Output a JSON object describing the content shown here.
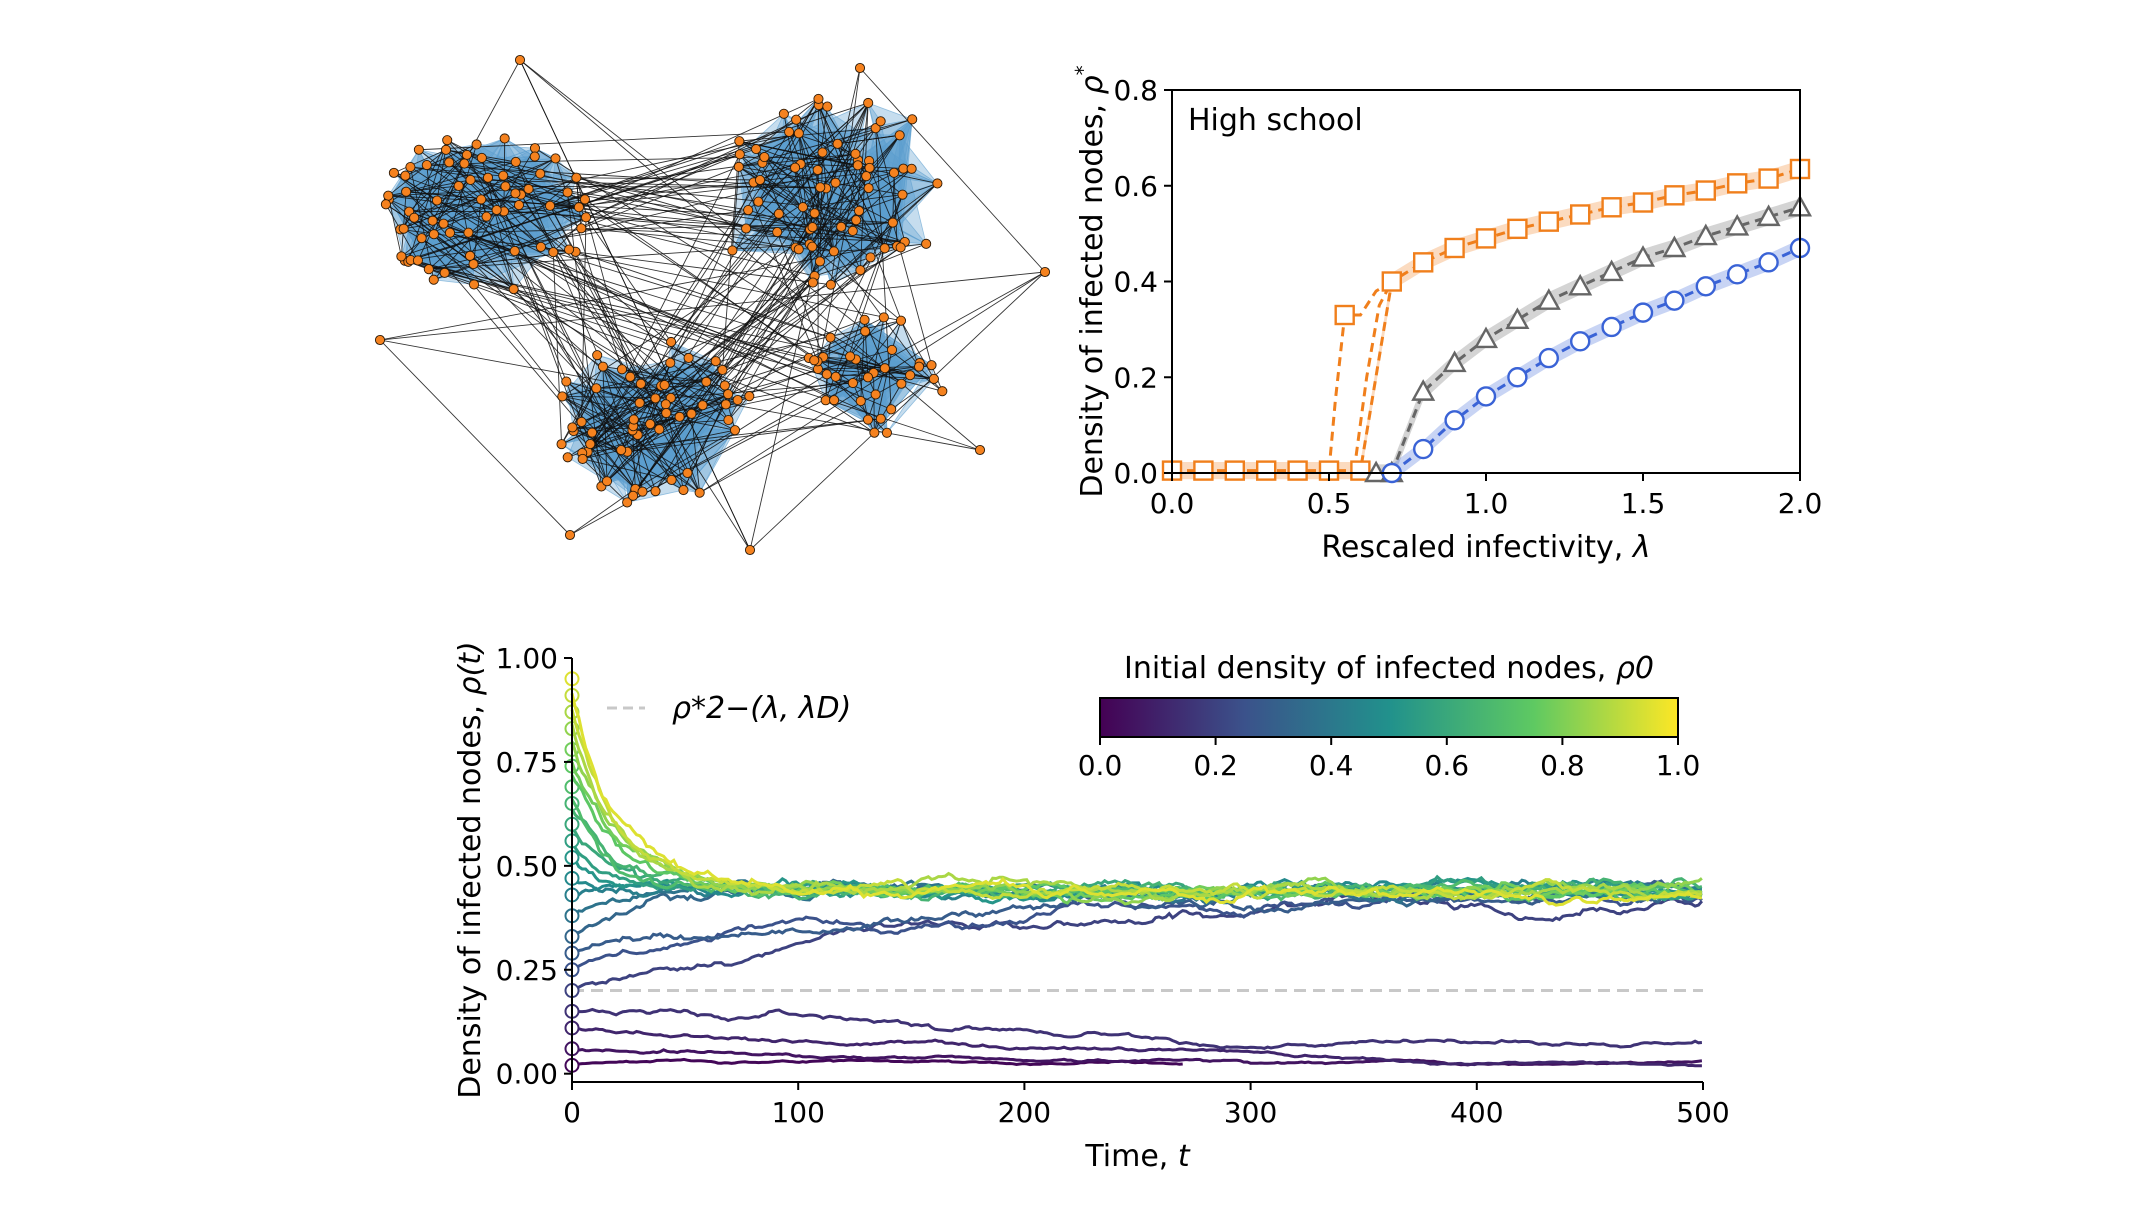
{
  "network": {
    "node_color": "#f5821f",
    "edge_color": "#111111",
    "hyperedge_color": "#5b9fcf"
  },
  "chart_data": [
    {
      "type": "line",
      "annotation": "High school",
      "xlabel_text": "Rescaled infectivity, ",
      "xlabel_symbol": "λ",
      "ylabel_text": "Density of infected nodes, ",
      "ylabel_symbol": "ρ",
      "ylabel_sup": "*",
      "xlim": [
        0,
        2.0
      ],
      "ylim": [
        0,
        0.8
      ],
      "xticks": [
        "0.0",
        "0.5",
        "1.0",
        "1.5",
        "2.0"
      ],
      "yticks": [
        "0.0",
        "0.2",
        "0.4",
        "0.6",
        "0.8"
      ],
      "series": [
        {
          "color": "#f07f1c",
          "marker": "square",
          "x": [
            0.0,
            0.1,
            0.2,
            0.3,
            0.4,
            0.5,
            0.6,
            0.7,
            0.8,
            0.9,
            1.0,
            1.1,
            1.2,
            1.3,
            1.4,
            1.5,
            1.6,
            1.7,
            1.8,
            1.9,
            2.0
          ],
          "y": [
            0.005,
            0.005,
            0.005,
            0.005,
            0.005,
            0.005,
            0.005,
            0.4,
            0.44,
            0.47,
            0.49,
            0.51,
            0.525,
            0.54,
            0.555,
            0.565,
            0.58,
            0.59,
            0.605,
            0.615,
            0.635
          ],
          "lower_x": [
            0.5,
            0.52,
            0.55,
            0.56,
            0.6,
            0.65,
            0.7
          ],
          "lower_y": [
            0.005,
            0.15,
            0.33,
            0.33,
            0.33,
            0.38,
            0.4
          ],
          "upper_x": [
            0.58,
            0.62,
            0.66,
            0.7
          ],
          "upper_y": [
            0.005,
            0.2,
            0.35,
            0.4
          ]
        },
        {
          "color": "#666666",
          "marker": "triangle",
          "x": [
            0.65,
            0.7,
            0.8,
            0.9,
            1.0,
            1.1,
            1.2,
            1.3,
            1.4,
            1.5,
            1.6,
            1.7,
            1.8,
            1.9,
            2.0
          ],
          "y": [
            0.0,
            0.0,
            0.17,
            0.23,
            0.28,
            0.32,
            0.36,
            0.39,
            0.42,
            0.45,
            0.47,
            0.495,
            0.515,
            0.535,
            0.555
          ]
        },
        {
          "color": "#3a63d6",
          "marker": "circle",
          "x": [
            0.7,
            0.8,
            0.9,
            1.0,
            1.1,
            1.2,
            1.3,
            1.4,
            1.5,
            1.6,
            1.7,
            1.8,
            1.9,
            2.0
          ],
          "y": [
            0.0,
            0.05,
            0.11,
            0.16,
            0.2,
            0.24,
            0.275,
            0.305,
            0.335,
            0.36,
            0.39,
            0.415,
            0.44,
            0.47
          ]
        }
      ]
    },
    {
      "type": "line",
      "xlabel_text": "Time, ",
      "xlabel_symbol": "t",
      "ylabel_text": "Density of infected nodes, ",
      "ylabel_symbol": "ρ(t)",
      "xlim": [
        0,
        500
      ],
      "ylim": [
        -0.02,
        1.0
      ],
      "xticks": [
        "0",
        "100",
        "200",
        "300",
        "400",
        "500"
      ],
      "yticks": [
        "0.00",
        "0.25",
        "0.50",
        "0.75",
        "1.00"
      ],
      "reference_line": {
        "value": 0.2,
        "label": "ρ*2−(λ, λD)",
        "color": "#c8c8c8"
      },
      "colorbar": {
        "label_text": "Initial density of infected nodes, ",
        "label_symbol": "ρ0",
        "ticks": [
          "0.0",
          "0.2",
          "0.4",
          "0.6",
          "0.8",
          "1.0"
        ],
        "colors": [
          "#440154",
          "#3b528b",
          "#21918c",
          "#5ec962",
          "#fde725"
        ]
      },
      "initial_densities": [
        0.02,
        0.06,
        0.11,
        0.15,
        0.2,
        0.25,
        0.29,
        0.33,
        0.38,
        0.43,
        0.47,
        0.52,
        0.56,
        0.6,
        0.65,
        0.69,
        0.74,
        0.78,
        0.83,
        0.87,
        0.91,
        0.95
      ],
      "series_short_end": {
        "rho0": 0.02,
        "t_end": 270
      },
      "stationary_level": 0.44
    }
  ]
}
